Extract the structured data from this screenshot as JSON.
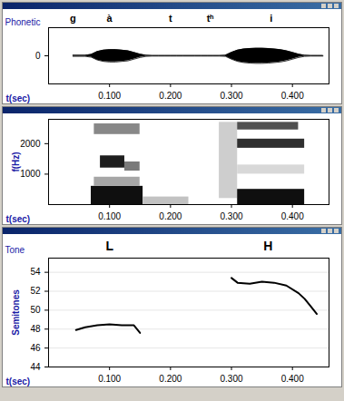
{
  "chart_data": [
    {
      "type": "area",
      "row_label": "Phonetic",
      "row_texts": [
        {
          "x": 0.04,
          "text": "g"
        },
        {
          "x": 0.1,
          "text": "à"
        },
        {
          "x": 0.2,
          "text": "t"
        },
        {
          "x": 0.265,
          "text": "tʰ"
        },
        {
          "x": 0.365,
          "text": "i"
        }
      ],
      "x": [
        0.04,
        0.05,
        0.06,
        0.07,
        0.08,
        0.09,
        0.1,
        0.11,
        0.12,
        0.13,
        0.14,
        0.15,
        0.16,
        0.17,
        0.18,
        0.19,
        0.2,
        0.21,
        0.22,
        0.23,
        0.24,
        0.25,
        0.26,
        0.27,
        0.28,
        0.29,
        0.3,
        0.31,
        0.32,
        0.33,
        0.34,
        0.35,
        0.36,
        0.37,
        0.38,
        0.39,
        0.4,
        0.41,
        0.42,
        0.43,
        0.44,
        0.45
      ],
      "upper": [
        0.02,
        0.02,
        0.02,
        0.05,
        0.15,
        0.2,
        0.22,
        0.22,
        0.2,
        0.18,
        0.12,
        0.06,
        0.02,
        0.01,
        0.01,
        0.01,
        0.01,
        0.01,
        0.01,
        0.01,
        0.01,
        0.01,
        0.01,
        0.01,
        0.01,
        0.02,
        0.12,
        0.2,
        0.24,
        0.26,
        0.27,
        0.27,
        0.26,
        0.24,
        0.22,
        0.18,
        0.12,
        0.06,
        0.02,
        0.01,
        0.01,
        0.01
      ],
      "lower": [
        -0.02,
        -0.02,
        -0.02,
        -0.05,
        -0.15,
        -0.2,
        -0.22,
        -0.22,
        -0.2,
        -0.18,
        -0.12,
        -0.06,
        -0.02,
        -0.01,
        -0.01,
        -0.01,
        -0.01,
        -0.01,
        -0.01,
        -0.01,
        -0.01,
        -0.01,
        -0.01,
        -0.01,
        -0.01,
        -0.02,
        -0.12,
        -0.2,
        -0.24,
        -0.26,
        -0.27,
        -0.27,
        -0.26,
        -0.24,
        -0.22,
        -0.18,
        -0.12,
        -0.06,
        -0.02,
        -0.01,
        -0.01,
        -0.01
      ],
      "color": "#000000",
      "xlabel": "t(sec)",
      "xlim": [
        0,
        0.46
      ],
      "xticks": [
        {
          "value": 0.1,
          "label": "0.100"
        },
        {
          "value": 0.2,
          "label": "0.200"
        },
        {
          "value": 0.3,
          "label": "0.300"
        },
        {
          "value": 0.4,
          "label": "0.400"
        }
      ],
      "ylim": [
        -1,
        1
      ],
      "yticks": [
        0
      ],
      "grid": false
    },
    {
      "type": "heatmap",
      "cells": [
        {
          "x": [
            0.07,
            0.155
          ],
          "y": [
            0,
            600
          ],
          "value": 0.95
        },
        {
          "x": [
            0.075,
            0.15
          ],
          "y": [
            600,
            900
          ],
          "value": 0.45
        },
        {
          "x": [
            0.085,
            0.125
          ],
          "y": [
            1200,
            1600
          ],
          "value": 0.9
        },
        {
          "x": [
            0.125,
            0.15
          ],
          "y": [
            1100,
            1400
          ],
          "value": 0.6
        },
        {
          "x": [
            0.075,
            0.15
          ],
          "y": [
            2300,
            2650
          ],
          "value": 0.55
        },
        {
          "x": [
            0.155,
            0.23
          ],
          "y": [
            0,
            250
          ],
          "value": 0.35
        },
        {
          "x": [
            0.28,
            0.31
          ],
          "y": [
            200,
            2700
          ],
          "value": 0.3
        },
        {
          "x": [
            0.31,
            0.42
          ],
          "y": [
            0,
            500
          ],
          "value": 0.95
        },
        {
          "x": [
            0.31,
            0.42
          ],
          "y": [
            1000,
            1300
          ],
          "value": 0.25
        },
        {
          "x": [
            0.31,
            0.42
          ],
          "y": [
            1850,
            2150
          ],
          "value": 0.85
        },
        {
          "x": [
            0.31,
            0.41
          ],
          "y": [
            2450,
            2700
          ],
          "value": 0.75
        }
      ],
      "xlabel": "t(sec)",
      "ylabel": "f(Hz)",
      "xlim": [
        0,
        0.46
      ],
      "xticks": [
        {
          "value": 0.1,
          "label": "0.100"
        },
        {
          "value": 0.2,
          "label": "0.200"
        },
        {
          "value": 0.3,
          "label": "0.300"
        },
        {
          "value": 0.4,
          "label": "0.400"
        }
      ],
      "ylim": [
        0,
        2800
      ],
      "yticks": [
        1000,
        2000
      ],
      "grid": false
    },
    {
      "type": "line",
      "row_label": "Tone",
      "row_texts": [
        {
          "x": 0.1,
          "text": "L"
        },
        {
          "x": 0.36,
          "text": "H"
        }
      ],
      "x": [
        0.045,
        0.06,
        0.08,
        0.1,
        0.12,
        0.14,
        0.15,
        0.2,
        0.3,
        0.31,
        0.33,
        0.35,
        0.37,
        0.39,
        0.41,
        0.42,
        0.43,
        0.44
      ],
      "values": [
        47.9,
        48.2,
        48.4,
        48.5,
        48.4,
        48.4,
        47.6,
        null,
        53.4,
        52.9,
        52.8,
        53.0,
        52.9,
        52.6,
        51.8,
        51.2,
        50.4,
        49.6
      ],
      "color": "#000000",
      "xlabel": "t(sec)",
      "ylabel": "Semitones",
      "xlim": [
        0,
        0.46
      ],
      "xticks": [
        {
          "value": 0.1,
          "label": "0.100"
        },
        {
          "value": 0.2,
          "label": "0.200"
        },
        {
          "value": 0.3,
          "label": "0.300"
        },
        {
          "value": 0.4,
          "label": "0.400"
        }
      ],
      "ylim": [
        44,
        55.5
      ],
      "yticks": [
        44,
        46,
        48,
        50,
        52,
        54
      ],
      "grid": true
    }
  ]
}
